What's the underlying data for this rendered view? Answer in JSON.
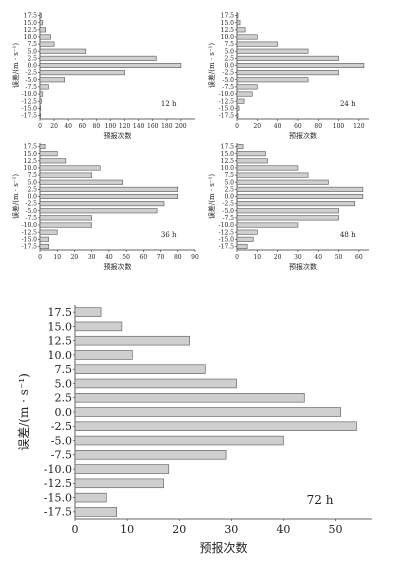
{
  "chart_data": [
    {
      "type": "bar",
      "orientation": "horizontal",
      "panel": "12 h",
      "annotation": "12 h",
      "categories": [
        "17.5",
        "15.0",
        "12.5",
        "10.0",
        "7.5",
        "5.0",
        "2.5",
        "0.0",
        "-2.5",
        "-5.0",
        "-7.5",
        "-10.0",
        "-12.5",
        "-15.0",
        "-17.5"
      ],
      "values": [
        2,
        4,
        8,
        15,
        20,
        65,
        165,
        200,
        120,
        35,
        12,
        4,
        2,
        1,
        1
      ],
      "xlabel": "预报次数",
      "ylabel": "误差/(m · s⁻¹)",
      "xlim": [
        0,
        220
      ],
      "xticks": [
        0,
        20,
        40,
        60,
        80,
        100,
        120,
        140,
        160,
        180,
        200
      ]
    },
    {
      "type": "bar",
      "orientation": "horizontal",
      "panel": "24 h",
      "annotation": "24 h",
      "categories": [
        "17.5",
        "15.0",
        "12.5",
        "10.0",
        "7.5",
        "5.0",
        "2.5",
        "0.0",
        "-2.5",
        "-5.0",
        "-7.5",
        "-10.0",
        "-12.5",
        "-15.0",
        "-17.5"
      ],
      "values": [
        1,
        3,
        8,
        20,
        40,
        70,
        100,
        125,
        100,
        70,
        20,
        15,
        7,
        2,
        1
      ],
      "xlabel": "预报次数",
      "ylabel": "误差/(m · s⁻¹)",
      "xlim": [
        0,
        130
      ],
      "xticks": [
        0,
        20,
        40,
        60,
        80,
        100,
        120
      ]
    },
    {
      "type": "bar",
      "orientation": "horizontal",
      "panel": "36 h",
      "annotation": "36 h",
      "categories": [
        "17.5",
        "15.0",
        "12.5",
        "10.0",
        "7.5",
        "5.0",
        "2.5",
        "0.0",
        "-2.5",
        "-5.0",
        "-7.5",
        "-10.0",
        "-12.5",
        "-15.0",
        "-17.5"
      ],
      "values": [
        3,
        10,
        15,
        35,
        30,
        48,
        80,
        80,
        72,
        68,
        30,
        30,
        10,
        5,
        5
      ],
      "xlabel": "预报次数",
      "ylabel": "误差/(m · s⁻¹)",
      "xlim": [
        0,
        90
      ],
      "xticks": [
        0,
        10,
        20,
        30,
        40,
        50,
        60,
        70,
        80,
        90
      ]
    },
    {
      "type": "bar",
      "orientation": "horizontal",
      "panel": "48 h",
      "annotation": "48 h",
      "categories": [
        "17.5",
        "15.0",
        "12.5",
        "10.0",
        "7.5",
        "5.0",
        "2.5",
        "0.0",
        "-2.5",
        "-5.0",
        "-7.5",
        "-10.0",
        "-12.5",
        "-15.0",
        "-17.5"
      ],
      "values": [
        3,
        14,
        15,
        30,
        35,
        45,
        62,
        62,
        58,
        50,
        50,
        30,
        10,
        8,
        5
      ],
      "xlabel": "预报次数",
      "ylabel": "误差/(m · s⁻¹)",
      "xlim": [
        0,
        65
      ],
      "xticks": [
        0,
        10,
        20,
        30,
        40,
        50,
        60
      ]
    },
    {
      "type": "bar",
      "orientation": "horizontal",
      "panel": "72 h",
      "annotation": "72 h",
      "categories": [
        "17.5",
        "15.0",
        "12.5",
        "10.0",
        "7.5",
        "5.0",
        "2.5",
        "0.0",
        "-2.5",
        "-5.0",
        "-7.5",
        "-10.0",
        "-12.5",
        "-15.0",
        "-17.5"
      ],
      "values": [
        5,
        9,
        22,
        11,
        25,
        31,
        44,
        51,
        54,
        40,
        29,
        18,
        17,
        6,
        8
      ],
      "xlabel": "预报次数",
      "ylabel": "误差/(m · s⁻¹)",
      "xlim": [
        0,
        57
      ],
      "xticks": [
        0,
        10,
        20,
        30,
        40,
        50
      ]
    }
  ],
  "figure_caption": ""
}
